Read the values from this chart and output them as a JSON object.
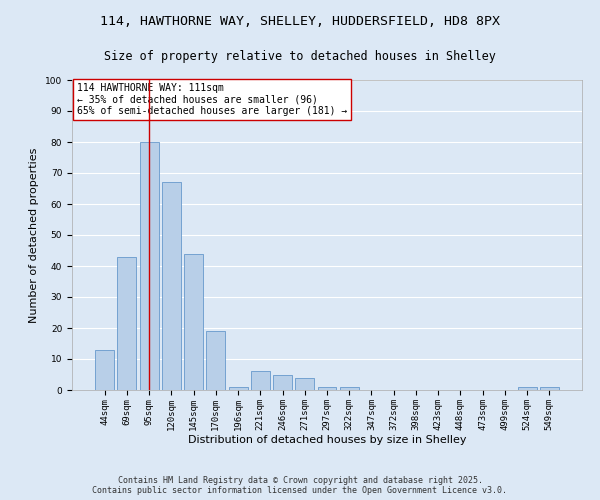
{
  "title1": "114, HAWTHORNE WAY, SHELLEY, HUDDERSFIELD, HD8 8PX",
  "title2": "Size of property relative to detached houses in Shelley",
  "xlabel": "Distribution of detached houses by size in Shelley",
  "ylabel": "Number of detached properties",
  "categories": [
    "44sqm",
    "69sqm",
    "95sqm",
    "120sqm",
    "145sqm",
    "170sqm",
    "196sqm",
    "221sqm",
    "246sqm",
    "271sqm",
    "297sqm",
    "322sqm",
    "347sqm",
    "372sqm",
    "398sqm",
    "423sqm",
    "448sqm",
    "473sqm",
    "499sqm",
    "524sqm",
    "549sqm"
  ],
  "values": [
    13,
    43,
    80,
    67,
    44,
    19,
    1,
    6,
    5,
    4,
    1,
    1,
    0,
    0,
    0,
    0,
    0,
    0,
    0,
    1,
    1
  ],
  "bar_color": "#b8cfe8",
  "bar_edge_color": "#6699cc",
  "highlight_bar_index": 2,
  "highlight_line_color": "#cc0000",
  "annotation_text": "114 HAWTHORNE WAY: 111sqm\n← 35% of detached houses are smaller (96)\n65% of semi-detached houses are larger (181) →",
  "annotation_box_color": "#ffffff",
  "annotation_box_edge_color": "#cc0000",
  "ylim": [
    0,
    100
  ],
  "yticks": [
    0,
    10,
    20,
    30,
    40,
    50,
    60,
    70,
    80,
    90,
    100
  ],
  "background_color": "#dce8f5",
  "grid_color": "#ffffff",
  "footer_line1": "Contains HM Land Registry data © Crown copyright and database right 2025.",
  "footer_line2": "Contains public sector information licensed under the Open Government Licence v3.0.",
  "title_fontsize": 9.5,
  "subtitle_fontsize": 8.5,
  "axis_label_fontsize": 8,
  "tick_fontsize": 6.5,
  "annotation_fontsize": 7,
  "footer_fontsize": 6
}
